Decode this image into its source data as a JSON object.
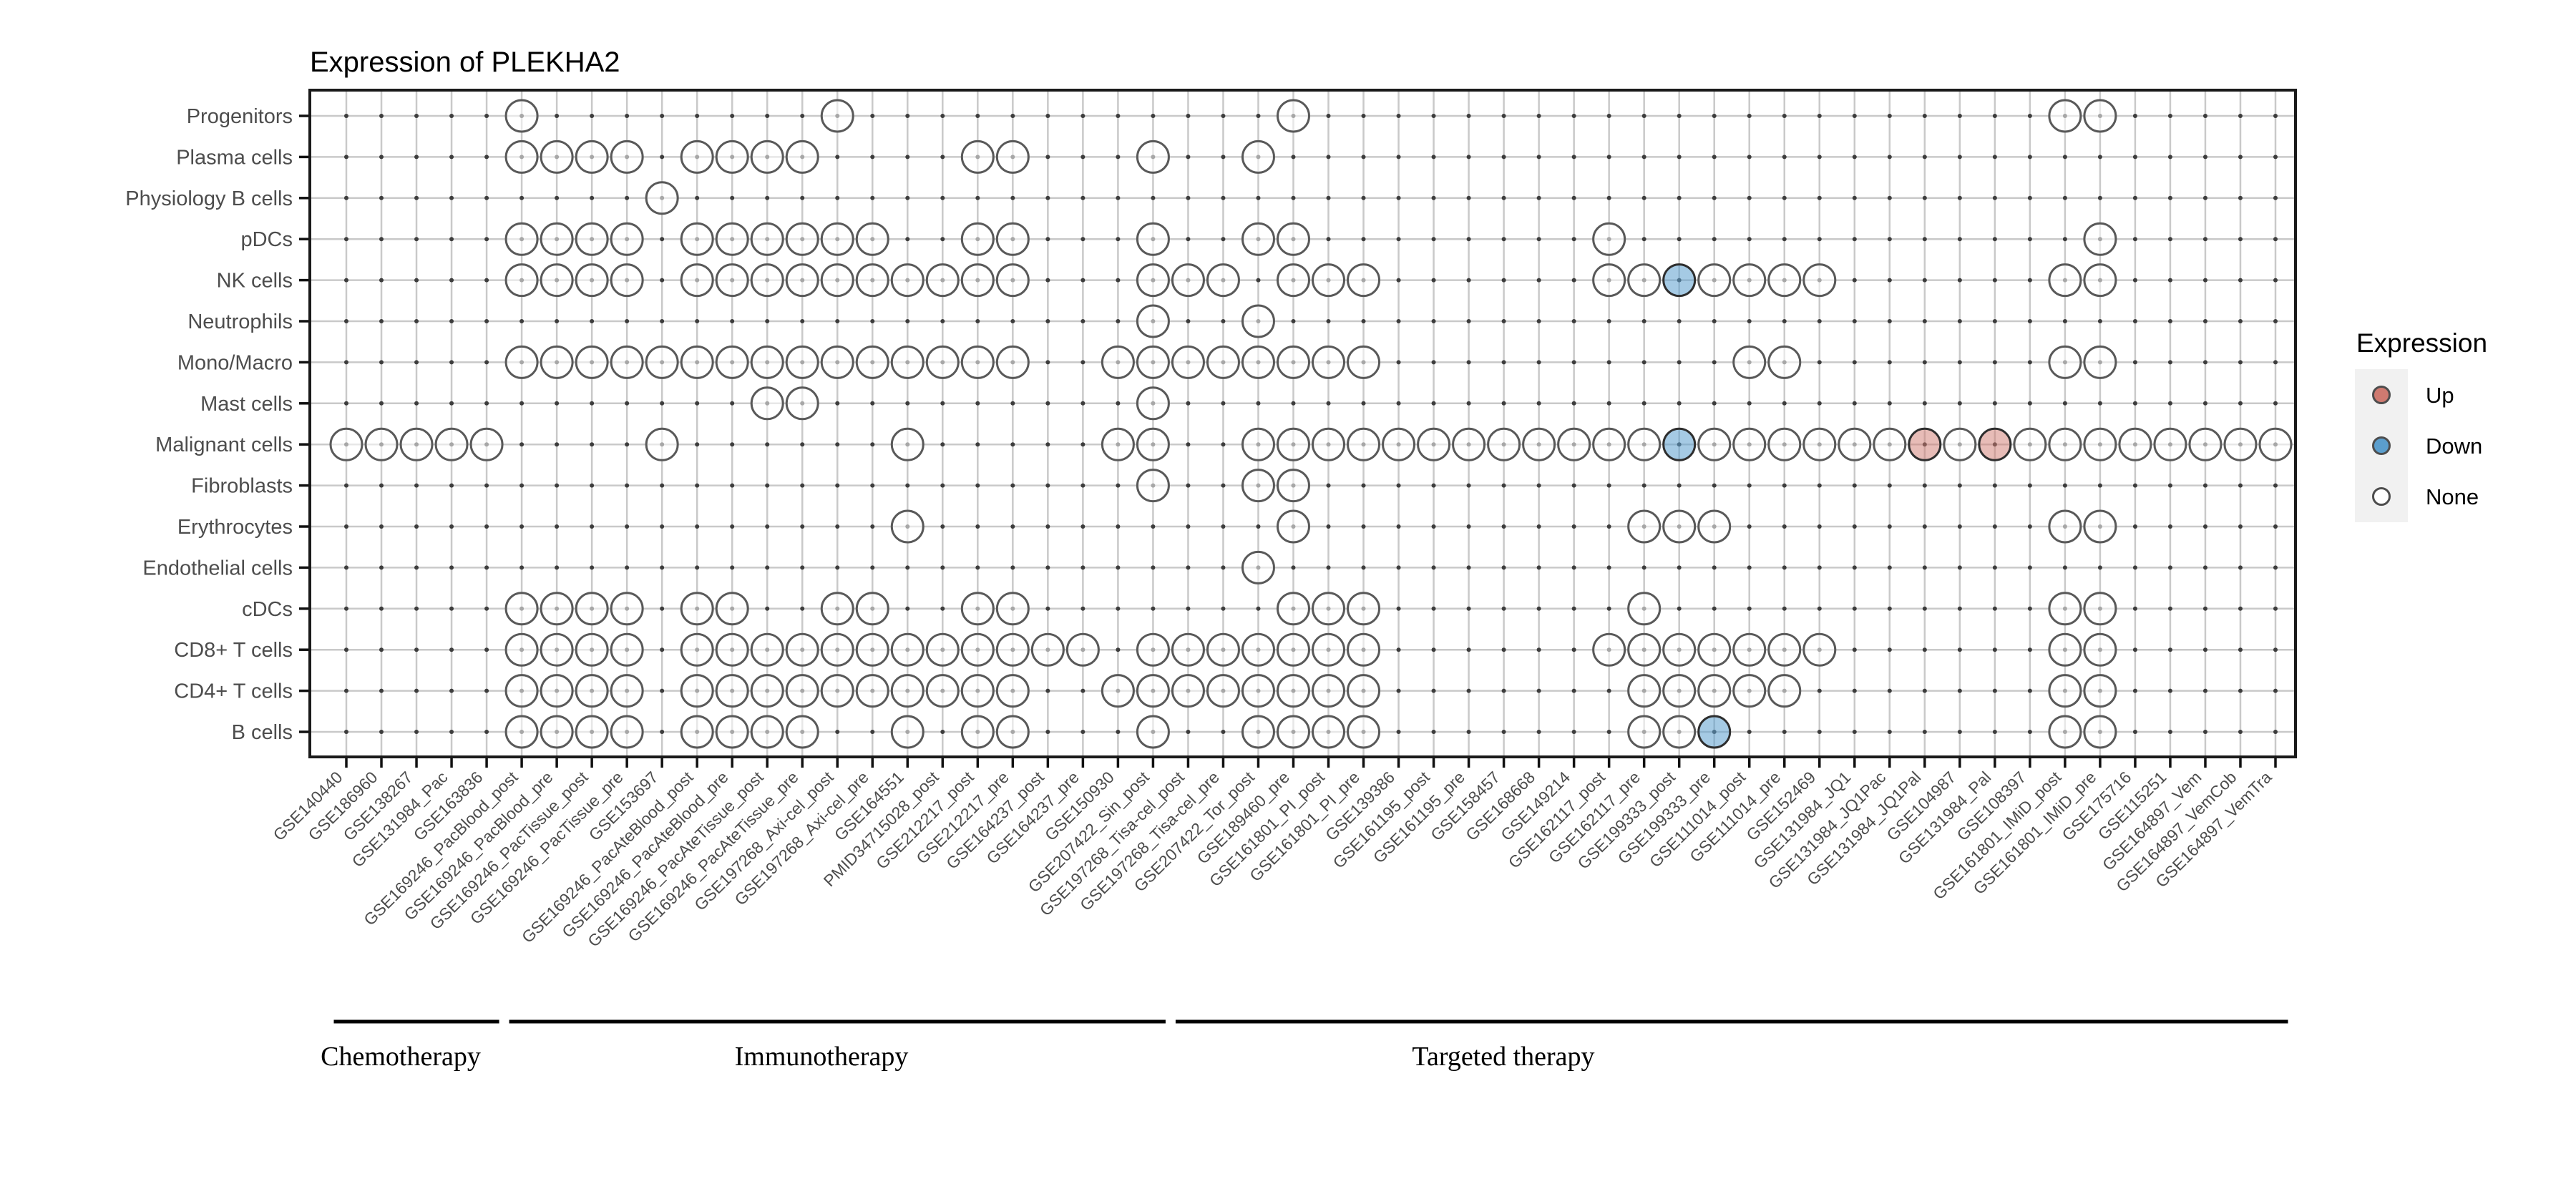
{
  "chart_data": {
    "type": "scatter",
    "title": "Expression of PLEKHA2",
    "xlabel": "",
    "ylabel": "",
    "grid": true,
    "legend_position": "right",
    "legend": {
      "title": "Expression",
      "items": [
        {
          "label": "Up",
          "color": "#cf7a70"
        },
        {
          "label": "Down",
          "color": "#5b9ecd"
        },
        {
          "label": "None",
          "color": "#ffffff"
        }
      ]
    },
    "cell_types": [
      "Progenitors",
      "Plasma cells",
      "Physiology B cells",
      "pDCs",
      "NK cells",
      "Neutrophils",
      "Mono/Macro",
      "Mast cells",
      "Malignant cells",
      "Fibroblasts",
      "Erythrocytes",
      "Endothelial cells",
      "cDCs",
      "CD8+ T cells",
      "CD4+ T cells",
      "B cells"
    ],
    "datasets": [
      "GSE140440",
      "GSE186960",
      "GSE138267",
      "GSE131984_Pac",
      "GSE163836",
      "GSE169246_PacBlood_post",
      "GSE169246_PacBlood_pre",
      "GSE169246_PacTissue_post",
      "GSE169246_PacTissue_pre",
      "GSE153697",
      "GSE169246_PacAteBlood_post",
      "GSE169246_PacAteBlood_pre",
      "GSE169246_PacAteTissue_post",
      "GSE169246_PacAteTissue_pre",
      "GSE197268_Axi-cel_post",
      "GSE197268_Axi-cel_pre",
      "GSE164551",
      "PMID34715028_post",
      "GSE212217_post",
      "GSE212217_pre",
      "GSE164237_post",
      "GSE164237_pre",
      "GSE150930",
      "GSE207422_Sin_post",
      "GSE197268_Tisa-cel_post",
      "GSE197268_Tisa-cel_pre",
      "GSE207422_Tor_post",
      "GSE189460_pre",
      "GSE161801_PI_post",
      "GSE161801_PI_pre",
      "GSE139386",
      "GSE161195_post",
      "GSE161195_pre",
      "GSE158457",
      "GSE168668",
      "GSE149214",
      "GSE162117_post",
      "GSE162117_pre",
      "GSE199333_post",
      "GSE199333_pre",
      "GSE111014_post",
      "GSE111014_pre",
      "GSE152469",
      "GSE131984_JQ1",
      "GSE131984_JQ1Pac",
      "GSE131984_JQ1Pal",
      "GSE104987",
      "GSE131984_Pal",
      "GSE108397",
      "GSE161801_IMiD_post",
      "GSE161801_IMiD_pre",
      "GSE175716",
      "GSE115251",
      "GSE164897_Vem",
      "GSE164897_VemCob",
      "GSE164897_VemTra"
    ],
    "therapy_groups": [
      {
        "label": "Chemotherapy",
        "from": 1,
        "to": 5
      },
      {
        "label": "Immunotherapy",
        "from": 6,
        "to": 24
      },
      {
        "label": "Targeted therapy",
        "from": 25,
        "to": 56
      }
    ],
    "none_points": {
      "Progenitors": [
        6,
        15,
        28,
        50,
        51
      ],
      "Plasma cells": [
        6,
        7,
        8,
        9,
        11,
        12,
        13,
        14,
        19,
        20,
        24,
        27
      ],
      "Physiology B cells": [
        10
      ],
      "pDCs": [
        6,
        7,
        8,
        9,
        11,
        12,
        13,
        14,
        15,
        16,
        19,
        20,
        24,
        27,
        28,
        37,
        51
      ],
      "NK cells": [
        6,
        7,
        8,
        9,
        11,
        12,
        13,
        14,
        15,
        16,
        17,
        18,
        19,
        20,
        24,
        25,
        26,
        28,
        29,
        30,
        37,
        38,
        40,
        41,
        42,
        43,
        50,
        51
      ],
      "Neutrophils": [
        24,
        27
      ],
      "Mono/Macro": [
        6,
        7,
        8,
        9,
        10,
        11,
        12,
        13,
        14,
        15,
        16,
        17,
        18,
        19,
        20,
        23,
        24,
        25,
        26,
        27,
        28,
        29,
        30,
        41,
        42,
        50,
        51
      ],
      "Mast cells": [
        13,
        14,
        24
      ],
      "Malignant cells": [
        1,
        2,
        3,
        4,
        5,
        10,
        17,
        23,
        24,
        27,
        28,
        29,
        30,
        31,
        32,
        33,
        34,
        35,
        36,
        37,
        38,
        40,
        41,
        42,
        43,
        44,
        45,
        47,
        49,
        50,
        51,
        52,
        53,
        54,
        55,
        56
      ],
      "Fibroblasts": [
        24,
        27,
        28
      ],
      "Erythrocytes": [
        17,
        28,
        38,
        39,
        40,
        50,
        51
      ],
      "Endothelial cells": [
        27
      ],
      "cDCs": [
        6,
        7,
        8,
        9,
        11,
        12,
        15,
        16,
        19,
        20,
        28,
        29,
        30,
        38,
        50,
        51
      ],
      "CD8+ T cells": [
        6,
        7,
        8,
        9,
        11,
        12,
        13,
        14,
        15,
        16,
        17,
        18,
        19,
        20,
        21,
        22,
        24,
        25,
        26,
        27,
        28,
        29,
        30,
        37,
        38,
        39,
        40,
        41,
        42,
        43,
        50,
        51
      ],
      "CD4+ T cells": [
        6,
        7,
        8,
        9,
        11,
        12,
        13,
        14,
        15,
        16,
        17,
        18,
        19,
        20,
        23,
        24,
        25,
        26,
        27,
        28,
        29,
        30,
        38,
        39,
        40,
        41,
        42,
        50,
        51
      ],
      "B cells": [
        6,
        7,
        8,
        9,
        11,
        12,
        13,
        14,
        17,
        19,
        20,
        24,
        27,
        28,
        29,
        30,
        38,
        39,
        50,
        51
      ]
    },
    "down_points": [
      {
        "row": "NK cells",
        "col": 39
      },
      {
        "row": "Malignant cells",
        "col": 39
      },
      {
        "row": "B cells",
        "col": 40
      }
    ],
    "up_points": [
      {
        "row": "Malignant cells",
        "col": 46
      },
      {
        "row": "Malignant cells",
        "col": 48
      }
    ]
  }
}
